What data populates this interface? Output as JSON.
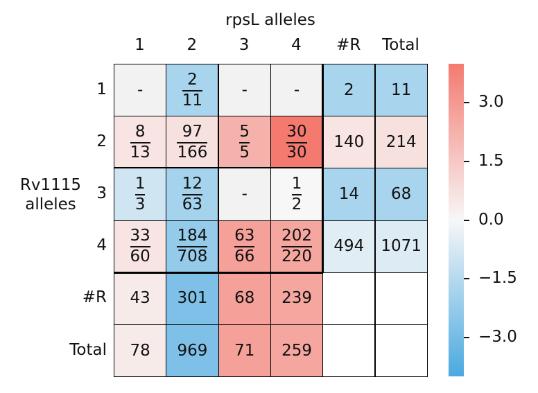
{
  "chart_data": {
    "type": "heatmap",
    "xlabel": "rpsL alleles",
    "ylabel": "Rv1115 alleles",
    "col_labels": [
      "1",
      "2",
      "3",
      "4",
      "#R",
      "Total"
    ],
    "row_labels": [
      "1",
      "2",
      "3",
      "4",
      "#R",
      "Total"
    ],
    "cells": [
      [
        {
          "text": "-",
          "score": null
        },
        {
          "num": "2",
          "den": "11",
          "score": -1.8
        },
        {
          "text": "-",
          "score": null
        },
        {
          "text": "-",
          "score": null
        },
        {
          "text": "2",
          "score": -1.8
        },
        {
          "text": "11",
          "score": -1.8
        }
      ],
      [
        {
          "num": "8",
          "den": "13",
          "score": 0.6
        },
        {
          "num": "97",
          "den": "166",
          "score": 0.7
        },
        {
          "num": "5",
          "den": "5",
          "score": 2.2
        },
        {
          "num": "30",
          "den": "30",
          "score": 4.0
        },
        {
          "text": "140",
          "score": 0.6
        },
        {
          "text": "214",
          "score": 0.7
        }
      ],
      [
        {
          "num": "1",
          "den": "3",
          "score": -0.9
        },
        {
          "num": "12",
          "den": "63",
          "score": -1.9
        },
        {
          "text": "-",
          "score": null
        },
        {
          "num": "1",
          "den": "2",
          "score": 0.0
        },
        {
          "text": "14",
          "score": -1.8
        },
        {
          "text": "68",
          "score": -1.8
        }
      ],
      [
        {
          "num": "33",
          "den": "60",
          "score": 0.6
        },
        {
          "num": "184",
          "den": "708",
          "score": -2.3
        },
        {
          "num": "63",
          "den": "66",
          "score": 2.8
        },
        {
          "num": "202",
          "den": "220",
          "score": 2.6
        },
        {
          "text": "494",
          "score": -0.5
        },
        {
          "text": "1071",
          "score": -0.6
        }
      ],
      [
        {
          "text": "43",
          "score": 0.4
        },
        {
          "text": "301",
          "score": -2.8
        },
        {
          "text": "68",
          "score": 2.8
        },
        {
          "text": "239",
          "score": 2.6
        },
        {
          "text": "",
          "score": "blank"
        },
        {
          "text": "",
          "score": "blank"
        }
      ],
      [
        {
          "text": "78",
          "score": 0.4
        },
        {
          "text": "969",
          "score": -2.8
        },
        {
          "text": "71",
          "score": 2.8
        },
        {
          "text": "259",
          "score": 2.6
        },
        {
          "text": "",
          "score": "blank"
        },
        {
          "text": "",
          "score": "blank"
        }
      ]
    ],
    "colorbar": {
      "range": [
        -4.0,
        4.0
      ],
      "ticks": [
        3.0,
        1.5,
        0.0,
        -1.5,
        -3.0
      ],
      "tick_labels": [
        "3.0",
        "1.5",
        "0.0",
        "−1.5",
        "−3.0"
      ],
      "colors": {
        "negative": "#4aa9e0",
        "zero": "#f7f7f7",
        "positive": "#f47a70"
      }
    },
    "missing_color": "#f2f2f2",
    "blank_color": "#ffffff"
  }
}
